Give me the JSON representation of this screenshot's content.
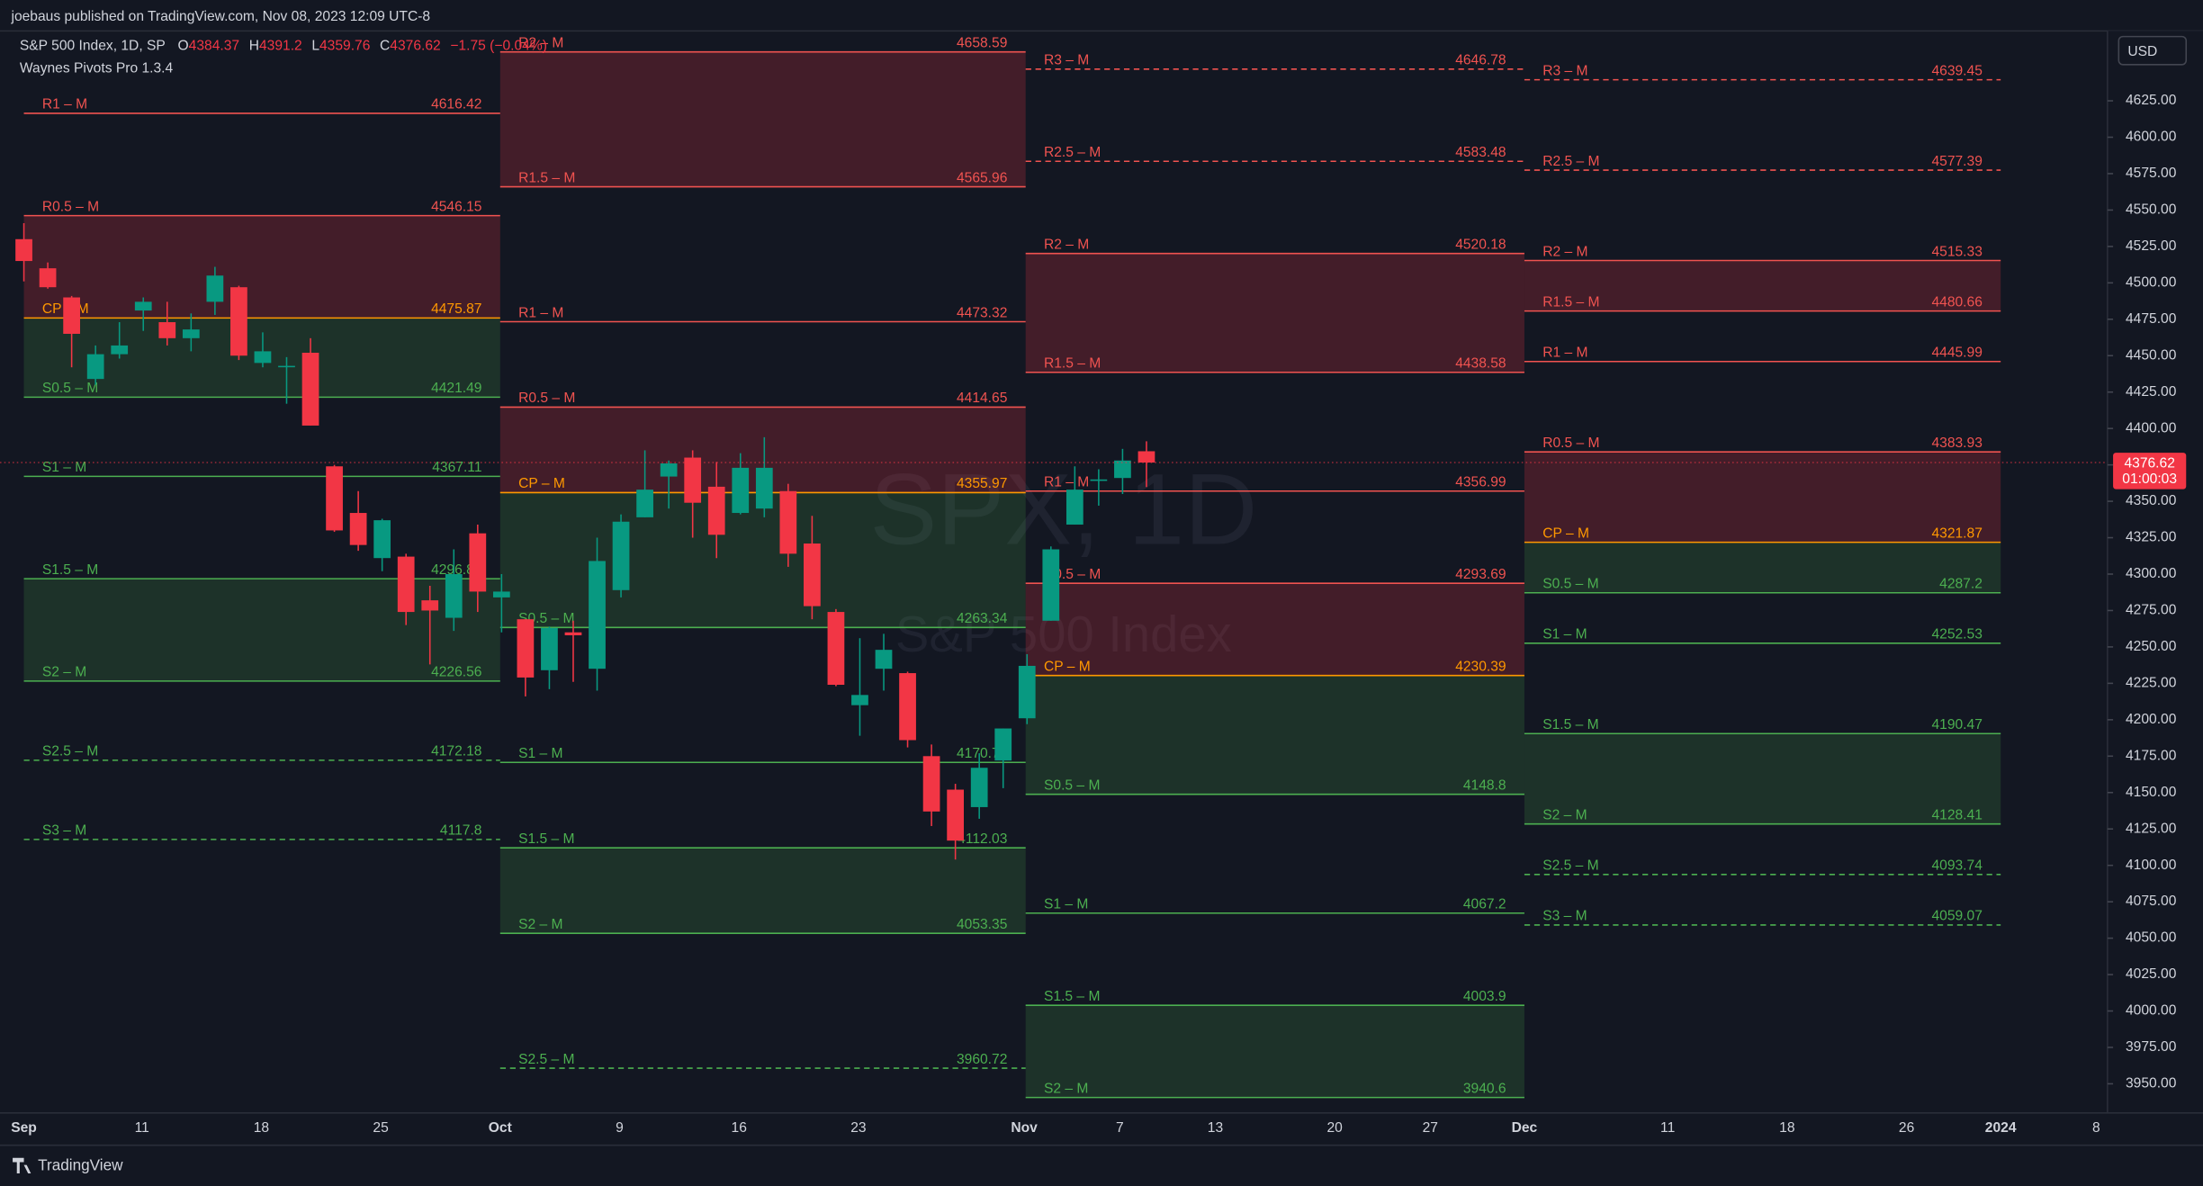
{
  "header": {
    "publisher": "joebaus published on TradingView.com, Nov 08, 2023 12:09 UTC-8",
    "symbol": "S&P 500 Index, 1D, SP",
    "o_label": "O",
    "h_label": "H",
    "l_label": "L",
    "c_label": "C",
    "change": "−1.75 (−0.04%)",
    "indicator": "Waynes Pivots Pro 1.3.4",
    "currency": "USD",
    "watermark": "SPX, 1D",
    "watermark_sub": "S&P 500 Index",
    "countdown": "01:00:03",
    "footer": "TradingView"
  },
  "chart_data": {
    "type": "candlestick",
    "up_color": "#089981",
    "down_color": "#f23645",
    "open": [
      4530,
      4510,
      4490,
      4434,
      4451,
      4481,
      4473,
      4462,
      4487,
      4497,
      4445,
      4443,
      4452,
      4374,
      4342,
      4311,
      4312,
      4282,
      4270,
      4328,
      4284,
      4269,
      4234,
      4260,
      4235,
      4289,
      4339,
      4367,
      4380,
      4360,
      4342,
      4345,
      4357,
      4321,
      4274,
      4210,
      4235,
      4232,
      4175,
      4152,
      4140,
      4172,
      4201,
      4268,
      4334,
      4364,
      4366,
      4384.37
    ],
    "high": [
      4541,
      4514,
      4491,
      4457,
      4473,
      4490,
      4487,
      4479,
      4511,
      4498,
      4466,
      4449,
      4462,
      4375,
      4357,
      4338,
      4314,
      4292,
      4317,
      4334,
      4300,
      4269,
      4264,
      4268,
      4325,
      4341,
      4385,
      4378,
      4385,
      4377,
      4383,
      4394,
      4362,
      4340,
      4276,
      4256,
      4259,
      4233,
      4183,
      4156,
      4177,
      4194,
      4245,
      4319,
      4374,
      4372,
      4386,
      4391.2
    ],
    "low": [
      4501,
      4496,
      4442,
      4430,
      4448,
      4467,
      4457,
      4453,
      4478,
      4447,
      4442,
      4417,
      4402,
      4329,
      4316,
      4302,
      4265,
      4238,
      4261,
      4274,
      4260,
      4216,
      4221,
      4226,
      4220,
      4284,
      4339,
      4345,
      4325,
      4311,
      4341,
      4339,
      4305,
      4269,
      4223,
      4189,
      4220,
      4181,
      4127,
      4104,
      4132,
      4153,
      4197,
      4268,
      4334,
      4347,
      4355,
      4359.76
    ],
    "close": [
      4515,
      4497,
      4465,
      4451,
      4457,
      4487,
      4462,
      4468,
      4505,
      4450,
      4453,
      4443,
      4402,
      4330,
      4320,
      4337,
      4274,
      4275,
      4300,
      4288,
      4288,
      4229,
      4263,
      4258,
      4309,
      4336,
      4358,
      4376,
      4349,
      4327,
      4373,
      4373,
      4314,
      4278,
      4224,
      4217,
      4248,
      4186,
      4137,
      4117,
      4167,
      4194,
      4237,
      4317,
      4358,
      4365,
      4378,
      4376.62
    ],
    "ylim": [
      3930,
      4673
    ],
    "yticks": [
      {
        "value": 3950,
        "label": "3950.00"
      },
      {
        "value": 3975,
        "label": "3975.00"
      },
      {
        "value": 4000,
        "label": "4000.00"
      },
      {
        "value": 4025,
        "label": "4025.00"
      },
      {
        "value": 4050,
        "label": "4050.00"
      },
      {
        "value": 4075,
        "label": "4075.00"
      },
      {
        "value": 4100,
        "label": "4100.00"
      },
      {
        "value": 4125,
        "label": "4125.00"
      },
      {
        "value": 4150,
        "label": "4150.00"
      },
      {
        "value": 4175,
        "label": "4175.00"
      },
      {
        "value": 4200,
        "label": "4200.00"
      },
      {
        "value": 4225,
        "label": "4225.00"
      },
      {
        "value": 4250,
        "label": "4250.00"
      },
      {
        "value": 4275,
        "label": "4275.00"
      },
      {
        "value": 4300,
        "label": "4300.00"
      },
      {
        "value": 4325,
        "label": "4325.00"
      },
      {
        "value": 4350,
        "label": "4350.00"
      },
      {
        "value": 4375,
        "label": "4375.00"
      },
      {
        "value": 4400,
        "label": "4400.00"
      },
      {
        "value": 4425,
        "label": "4425.00"
      },
      {
        "value": 4450,
        "label": "4450.00"
      },
      {
        "value": 4475,
        "label": "4475.00"
      },
      {
        "value": 4500,
        "label": "4500.00"
      },
      {
        "value": 4525,
        "label": "4525.00"
      },
      {
        "value": 4550,
        "label": "4550.00"
      },
      {
        "value": 4575,
        "label": "4575.00"
      },
      {
        "value": 4600,
        "label": "4600.00"
      },
      {
        "value": 4625,
        "label": "4625.00"
      }
    ],
    "xtick_labels": [
      "Sep",
      "11",
      "18",
      "25",
      "Oct",
      "9",
      "16",
      "23",
      "Nov",
      "7",
      "13",
      "20",
      "27",
      "Dec",
      "11",
      "18",
      "26",
      "2024",
      "8"
    ],
    "pivots": [
      {
        "levels": [
          {
            "name": "R1 – M",
            "value": 4616.42
          },
          {
            "name": "R0.5 – M",
            "value": 4546.15
          },
          {
            "name": "CP – M",
            "value": 4475.87
          },
          {
            "name": "S0.5 – M",
            "value": 4421.49
          },
          {
            "name": "S1 – M",
            "value": 4367.11
          },
          {
            "name": "S1.5 – M",
            "value": 4296.84
          },
          {
            "name": "S2 – M",
            "value": 4226.56
          },
          {
            "name": "S2.5 – M",
            "value": 4172.18,
            "dashed": true
          },
          {
            "name": "S3 – M",
            "value": 4117.8,
            "dashed": true
          }
        ]
      },
      {
        "levels": [
          {
            "name": "R2 – M",
            "value": 4658.59
          },
          {
            "name": "R1.5 – M",
            "value": 4565.96
          },
          {
            "name": "R1 – M",
            "value": 4473.32
          },
          {
            "name": "R0.5 – M",
            "value": 4414.65
          },
          {
            "name": "CP – M",
            "value": 4355.97
          },
          {
            "name": "S0.5 – M",
            "value": 4263.34
          },
          {
            "name": "S1 – M",
            "value": 4170.71
          },
          {
            "name": "S1.5 – M",
            "value": 4112.03
          },
          {
            "name": "S2 – M",
            "value": 4053.35
          },
          {
            "name": "S2.5 – M",
            "value": 3960.72,
            "dashed": true
          }
        ]
      },
      {
        "levels": [
          {
            "name": "R3 – M",
            "value": 4646.78,
            "dashed": true
          },
          {
            "name": "R2.5 – M",
            "value": 4583.48,
            "dashed": true
          },
          {
            "name": "R2 – M",
            "value": 4520.18
          },
          {
            "name": "R1.5 – M",
            "value": 4438.58
          },
          {
            "name": "R1 – M",
            "value": 4356.99
          },
          {
            "name": "R0.5 – M",
            "value": 4293.69
          },
          {
            "name": "CP – M",
            "value": 4230.39
          },
          {
            "name": "S0.5 – M",
            "value": 4148.8
          },
          {
            "name": "S1 – M",
            "value": 4067.2
          },
          {
            "name": "S1.5 – M",
            "value": 4003.9
          },
          {
            "name": "S2 – M",
            "value": 3940.6
          }
        ]
      },
      {
        "levels": [
          {
            "name": "R3 – M",
            "value": 4639.45,
            "dashed": true
          },
          {
            "name": "R2.5 – M",
            "value": 4577.39,
            "dashed": true
          },
          {
            "name": "R2 – M",
            "value": 4515.33
          },
          {
            "name": "R1.5 – M",
            "value": 4480.66
          },
          {
            "name": "R1 – M",
            "value": 4445.99
          },
          {
            "name": "R0.5 – M",
            "value": 4383.93
          },
          {
            "name": "CP – M",
            "value": 4321.87
          },
          {
            "name": "S0.5 – M",
            "value": 4287.2
          },
          {
            "name": "S1 – M",
            "value": 4252.53
          },
          {
            "name": "S1.5 – M",
            "value": 4190.47
          },
          {
            "name": "S2 – M",
            "value": 4128.41
          },
          {
            "name": "S2.5 – M",
            "value": 4093.74,
            "dashed": true
          },
          {
            "name": "S3 – M",
            "value": 4059.07,
            "dashed": true
          }
        ]
      }
    ]
  }
}
